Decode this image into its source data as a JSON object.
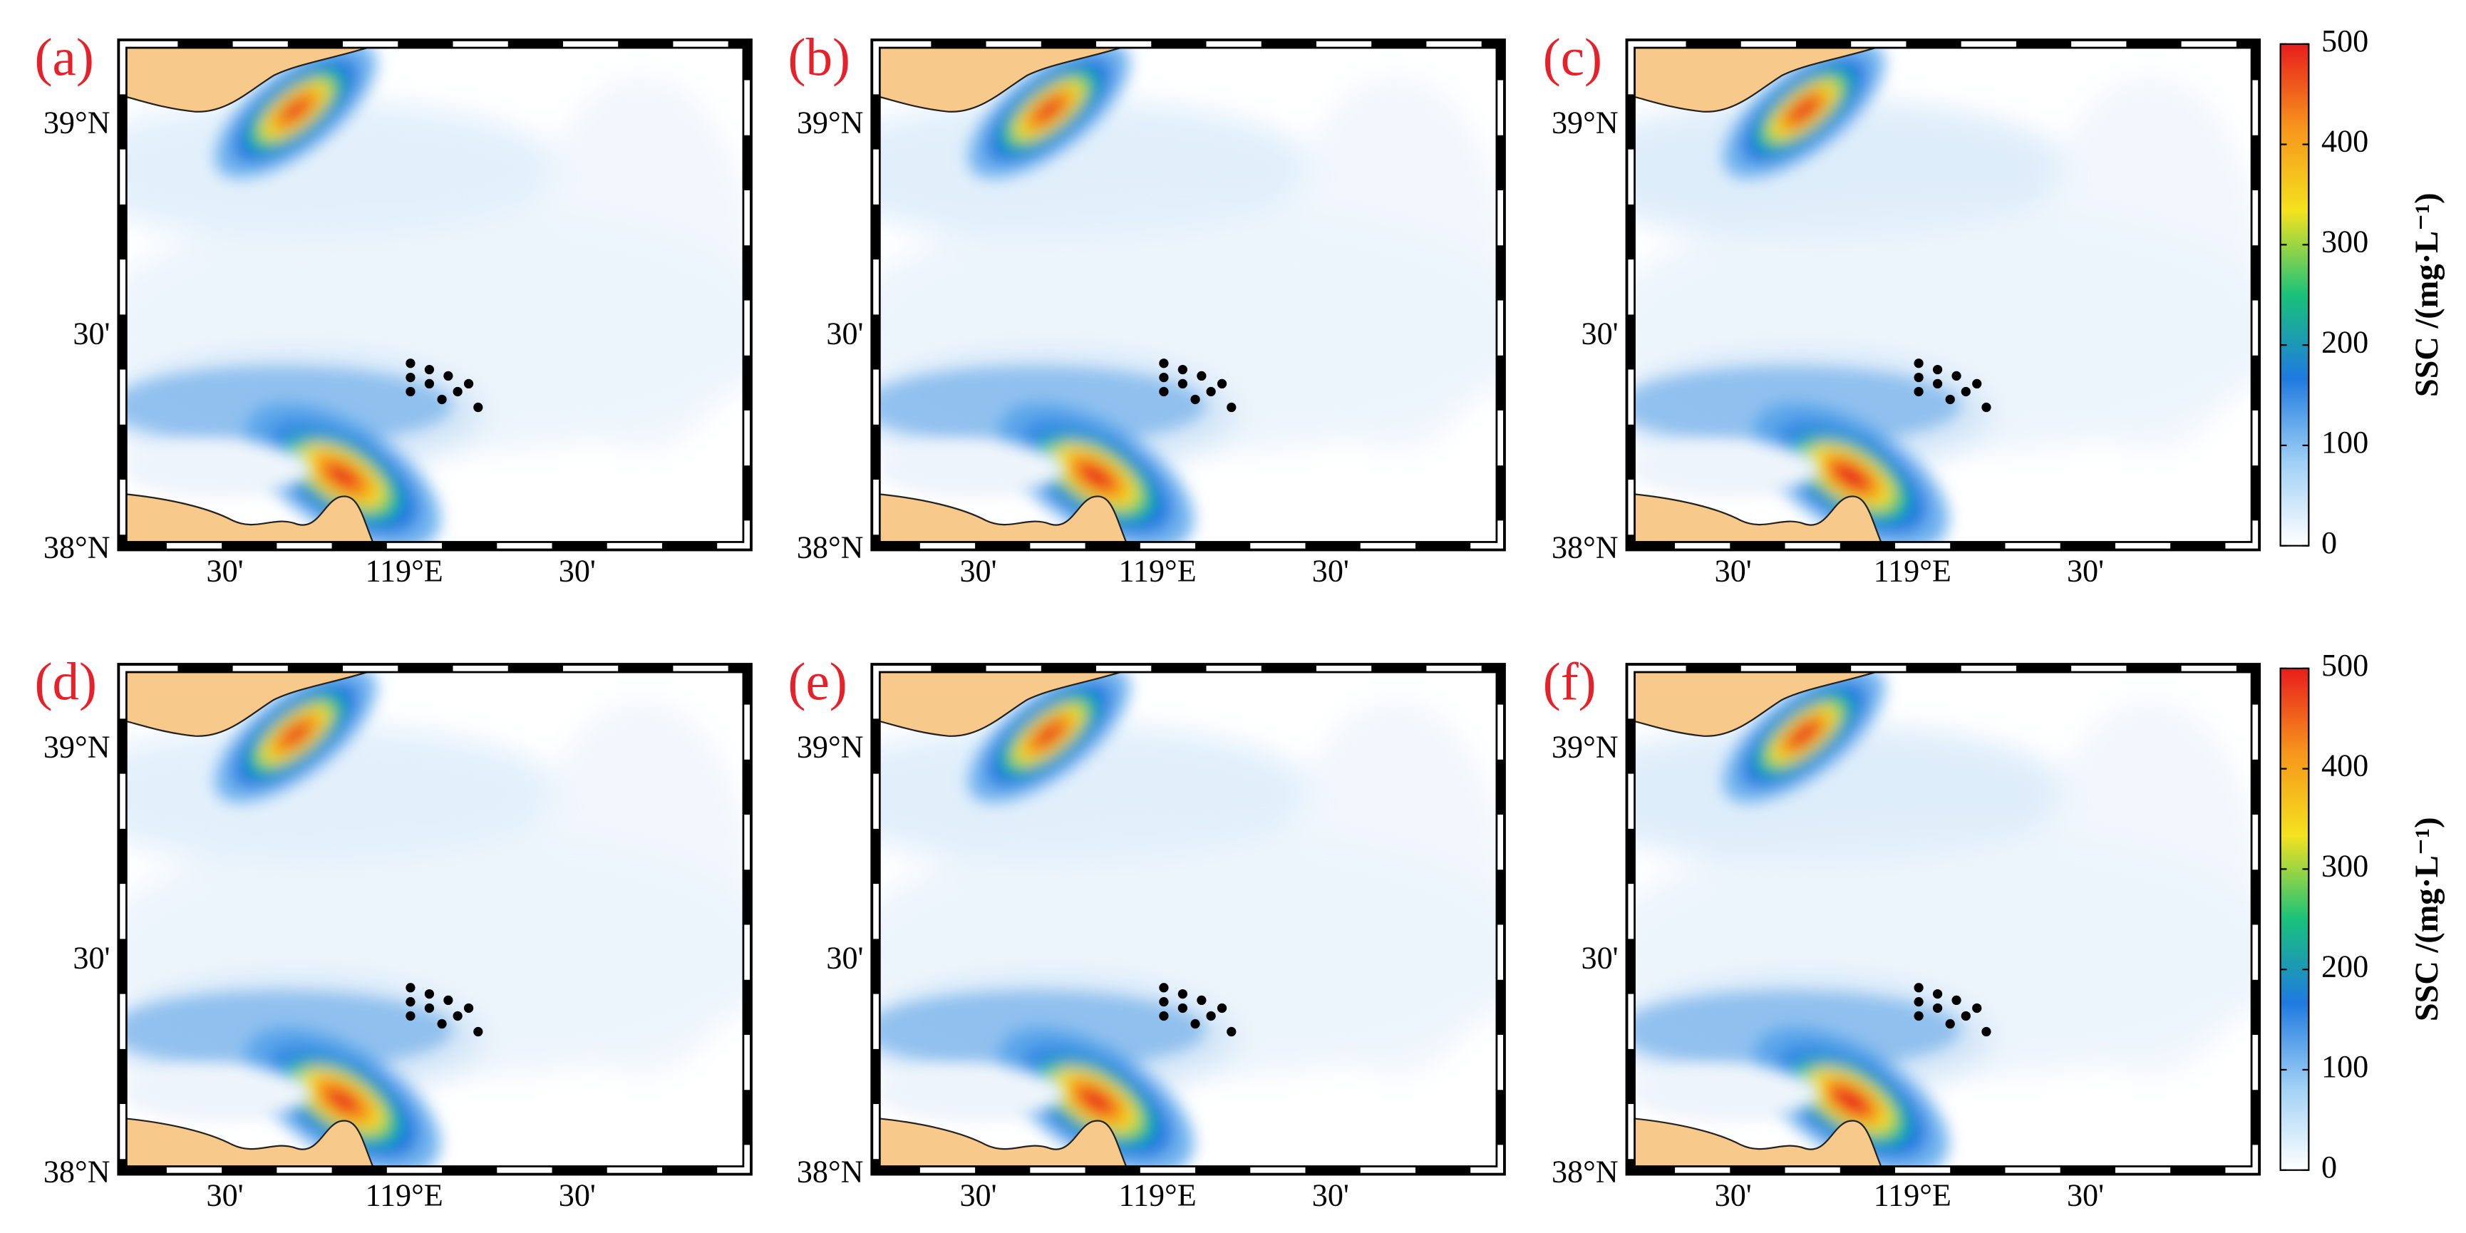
{
  "panels": [
    {
      "label": "(a)"
    },
    {
      "label": "(b)"
    },
    {
      "label": "(c)"
    },
    {
      "label": "(d)"
    },
    {
      "label": "(e)"
    },
    {
      "label": "(f)"
    }
  ],
  "axes": {
    "y_labels": [
      "39°N",
      "30'",
      "38°N"
    ],
    "x_labels": [
      "30'",
      "119°E",
      "30'"
    ]
  },
  "colorbar": {
    "label": "SSC /(mg·L⁻¹)",
    "lim": [
      0,
      500
    ],
    "ticks": [
      0,
      100,
      200,
      300,
      400,
      500
    ],
    "colors": [
      "#ffffff",
      "#9fd0f5",
      "#1f7ae0",
      "#19c27a",
      "#f4e21e",
      "#f7951c",
      "#e81d1d"
    ]
  }
}
